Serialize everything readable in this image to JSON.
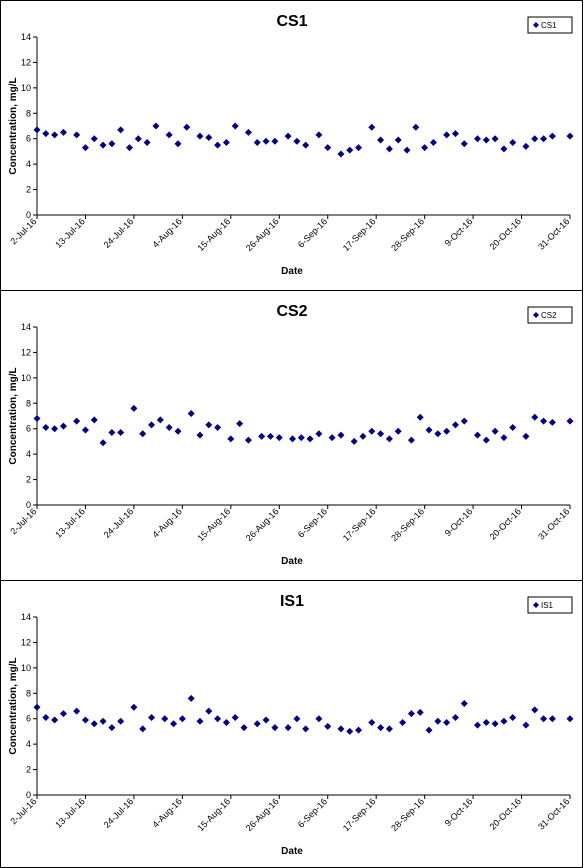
{
  "chart_data": [
    {
      "type": "scatter",
      "title": "CS1",
      "xlabel": "Date",
      "ylabel": "Concentration, mg/L",
      "ylim": [
        0,
        14
      ],
      "yticks": [
        "0",
        "2",
        "4",
        "6",
        "8",
        "10",
        "12",
        "14"
      ],
      "xlim": [
        "2016-07-02",
        "2016-10-31"
      ],
      "xticks": [
        "2-Jul-16",
        "13-Jul-16",
        "24-Jul-16",
        "4-Aug-16",
        "15-Aug-16",
        "26-Aug-16",
        "6-Sep-16",
        "17-Sep-16",
        "28-Sep-16",
        "9-Oct-16",
        "20-Oct-16",
        "31-Oct-16"
      ],
      "grid": false,
      "legend": "top-right",
      "marker_color": "#000080",
      "series": [
        {
          "name": "CS1",
          "x": [
            "2016-07-02",
            "2016-07-04",
            "2016-07-06",
            "2016-07-08",
            "2016-07-11",
            "2016-07-13",
            "2016-07-15",
            "2016-07-17",
            "2016-07-19",
            "2016-07-21",
            "2016-07-23",
            "2016-07-25",
            "2016-07-27",
            "2016-07-29",
            "2016-08-01",
            "2016-08-03",
            "2016-08-05",
            "2016-08-08",
            "2016-08-10",
            "2016-08-12",
            "2016-08-14",
            "2016-08-16",
            "2016-08-19",
            "2016-08-21",
            "2016-08-23",
            "2016-08-25",
            "2016-08-28",
            "2016-08-30",
            "2016-09-01",
            "2016-09-04",
            "2016-09-06",
            "2016-09-09",
            "2016-09-11",
            "2016-09-13",
            "2016-09-16",
            "2016-09-18",
            "2016-09-20",
            "2016-09-22",
            "2016-09-24",
            "2016-09-26",
            "2016-09-28",
            "2016-09-30",
            "2016-10-03",
            "2016-10-05",
            "2016-10-07",
            "2016-10-10",
            "2016-10-12",
            "2016-10-14",
            "2016-10-16",
            "2016-10-18",
            "2016-10-21",
            "2016-10-23",
            "2016-10-25",
            "2016-10-27",
            "2016-10-31"
          ],
          "y": [
            6.7,
            6.4,
            6.3,
            6.5,
            6.3,
            5.3,
            6.0,
            5.5,
            5.6,
            6.7,
            5.3,
            6.0,
            5.7,
            7.0,
            6.3,
            5.6,
            6.9,
            6.2,
            6.1,
            5.5,
            5.7,
            7.0,
            6.5,
            5.7,
            5.8,
            5.8,
            6.2,
            5.8,
            5.5,
            6.3,
            5.3,
            4.8,
            5.1,
            5.3,
            6.9,
            5.9,
            5.2,
            5.9,
            5.1,
            6.9,
            5.3,
            5.7,
            6.3,
            6.4,
            5.6,
            6.0,
            5.9,
            6.0,
            5.2,
            5.7,
            5.4,
            6.0,
            6.0,
            6.2,
            6.2
          ]
        }
      ]
    },
    {
      "type": "scatter",
      "title": "CS2",
      "xlabel": "Date",
      "ylabel": "Concentration, mg/L",
      "ylim": [
        0,
        14
      ],
      "yticks": [
        "0",
        "2",
        "4",
        "6",
        "8",
        "10",
        "12",
        "14"
      ],
      "xlim": [
        "2016-07-02",
        "2016-10-31"
      ],
      "xticks": [
        "2-Jul-16",
        "13-Jul-16",
        "24-Jul-16",
        "4-Aug-16",
        "15-Aug-16",
        "26-Aug-16",
        "6-Sep-16",
        "17-Sep-16",
        "28-Sep-16",
        "9-Oct-16",
        "20-Oct-16",
        "31-Oct-16"
      ],
      "grid": false,
      "legend": "top-right",
      "marker_color": "#000080",
      "series": [
        {
          "name": "CS2",
          "x": [
            "2016-07-02",
            "2016-07-04",
            "2016-07-06",
            "2016-07-08",
            "2016-07-11",
            "2016-07-13",
            "2016-07-15",
            "2016-07-17",
            "2016-07-19",
            "2016-07-21",
            "2016-07-24",
            "2016-07-26",
            "2016-07-28",
            "2016-07-30",
            "2016-08-01",
            "2016-08-03",
            "2016-08-06",
            "2016-08-08",
            "2016-08-10",
            "2016-08-12",
            "2016-08-15",
            "2016-08-17",
            "2016-08-19",
            "2016-08-22",
            "2016-08-24",
            "2016-08-26",
            "2016-08-29",
            "2016-08-31",
            "2016-09-02",
            "2016-09-04",
            "2016-09-07",
            "2016-09-09",
            "2016-09-12",
            "2016-09-14",
            "2016-09-16",
            "2016-09-18",
            "2016-09-20",
            "2016-09-22",
            "2016-09-25",
            "2016-09-27",
            "2016-09-29",
            "2016-10-01",
            "2016-10-03",
            "2016-10-05",
            "2016-10-07",
            "2016-10-10",
            "2016-10-12",
            "2016-10-14",
            "2016-10-16",
            "2016-10-18",
            "2016-10-21",
            "2016-10-23",
            "2016-10-25",
            "2016-10-27",
            "2016-10-31"
          ],
          "y": [
            6.8,
            6.1,
            6.0,
            6.2,
            6.6,
            5.9,
            6.7,
            4.9,
            5.7,
            5.7,
            7.6,
            5.6,
            6.3,
            6.7,
            6.1,
            5.8,
            7.2,
            5.5,
            6.3,
            6.1,
            5.2,
            6.4,
            5.1,
            5.4,
            5.4,
            5.3,
            5.2,
            5.3,
            5.2,
            5.6,
            5.3,
            5.5,
            5.0,
            5.4,
            5.8,
            5.6,
            5.2,
            5.8,
            5.1,
            6.9,
            5.9,
            5.6,
            5.8,
            6.3,
            6.6,
            5.5,
            5.1,
            5.8,
            5.3,
            6.1,
            5.4,
            6.9,
            6.6,
            6.5,
            6.6
          ]
        }
      ]
    },
    {
      "type": "scatter",
      "title": "IS1",
      "xlabel": "Date",
      "ylabel": "Concentration, mg/L",
      "ylim": [
        0,
        14
      ],
      "yticks": [
        "0",
        "2",
        "4",
        "6",
        "8",
        "10",
        "12",
        "14"
      ],
      "xlim": [
        "2016-07-02",
        "2016-10-31"
      ],
      "xticks": [
        "2-Jul-16",
        "13-Jul-16",
        "24-Jul-16",
        "4-Aug-16",
        "15-Aug-16",
        "26-Aug-16",
        "6-Sep-16",
        "17-Sep-16",
        "28-Sep-16",
        "9-Oct-16",
        "20-Oct-16",
        "31-Oct-16"
      ],
      "grid": false,
      "legend": "top-right",
      "marker_color": "#000080",
      "series": [
        {
          "name": "IS1",
          "x": [
            "2016-07-02",
            "2016-07-04",
            "2016-07-06",
            "2016-07-08",
            "2016-07-11",
            "2016-07-13",
            "2016-07-15",
            "2016-07-17",
            "2016-07-19",
            "2016-07-21",
            "2016-07-24",
            "2016-07-26",
            "2016-07-28",
            "2016-07-31",
            "2016-08-02",
            "2016-08-04",
            "2016-08-06",
            "2016-08-08",
            "2016-08-10",
            "2016-08-12",
            "2016-08-14",
            "2016-08-16",
            "2016-08-18",
            "2016-08-21",
            "2016-08-23",
            "2016-08-25",
            "2016-08-28",
            "2016-08-30",
            "2016-09-01",
            "2016-09-04",
            "2016-09-06",
            "2016-09-09",
            "2016-09-11",
            "2016-09-13",
            "2016-09-16",
            "2016-09-18",
            "2016-09-20",
            "2016-09-23",
            "2016-09-25",
            "2016-09-27",
            "2016-09-29",
            "2016-10-01",
            "2016-10-03",
            "2016-10-05",
            "2016-10-07",
            "2016-10-10",
            "2016-10-12",
            "2016-10-14",
            "2016-10-16",
            "2016-10-18",
            "2016-10-21",
            "2016-10-23",
            "2016-10-25",
            "2016-10-27",
            "2016-10-31"
          ],
          "y": [
            6.9,
            6.1,
            5.9,
            6.4,
            6.6,
            5.9,
            5.6,
            5.8,
            5.3,
            5.8,
            6.9,
            5.2,
            6.1,
            6.0,
            5.6,
            6.0,
            7.6,
            5.8,
            6.6,
            6.0,
            5.7,
            6.1,
            5.3,
            5.6,
            5.9,
            5.3,
            5.3,
            6.0,
            5.2,
            6.0,
            5.4,
            5.2,
            5.0,
            5.1,
            5.7,
            5.3,
            5.2,
            5.7,
            6.4,
            6.5,
            5.1,
            5.8,
            5.7,
            6.1,
            7.2,
            5.5,
            5.7,
            5.6,
            5.8,
            6.1,
            5.5,
            6.7,
            6.0,
            6.0,
            6.0
          ]
        }
      ]
    }
  ]
}
